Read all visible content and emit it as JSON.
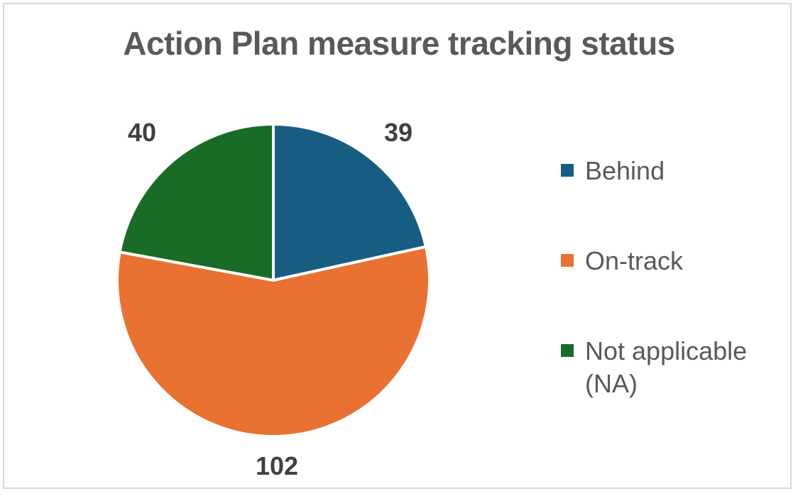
{
  "chart_data": {
    "type": "pie",
    "title": "Action Plan measure tracking status",
    "categories": [
      "Behind",
      "On-track",
      "Not applicable (NA)"
    ],
    "values": [
      39,
      102,
      40
    ],
    "colors": [
      "#175d82",
      "#e97132",
      "#1a6b26"
    ],
    "data_labels": [
      "39",
      "102",
      "40"
    ],
    "legend_position": "right",
    "start_angle_deg": 0,
    "direction": "clockwise"
  },
  "legend": {
    "items": [
      {
        "label": "Behind",
        "color": "#175d82"
      },
      {
        "label": "On-track",
        "color": "#e97132"
      },
      {
        "label": "Not applicable\n(NA)",
        "line1": "Not applicable",
        "line2": "(NA)",
        "color": "#1a6b26"
      }
    ]
  },
  "labels": {
    "behind": "39",
    "ontrack": "102",
    "na": "40"
  }
}
